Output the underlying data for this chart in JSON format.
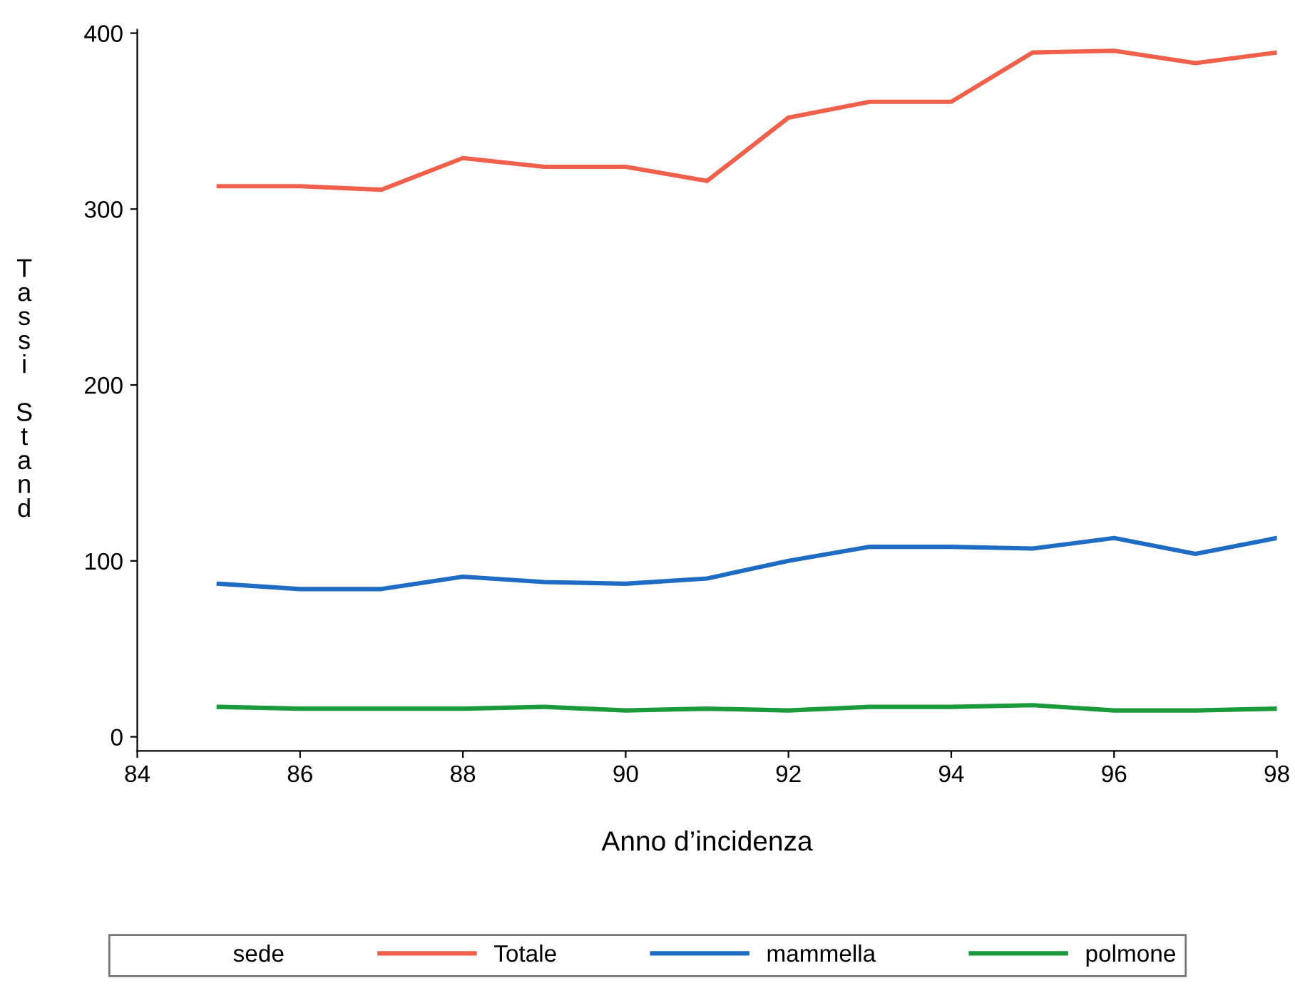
{
  "chart_data": {
    "type": "line",
    "xlabel": "Anno d’incidenza",
    "ylabel": "Tassi Stand",
    "legend_title": "sede",
    "x": [
      85,
      86,
      87,
      88,
      89,
      90,
      91,
      92,
      93,
      94,
      95,
      96,
      97,
      98
    ],
    "series": [
      {
        "name": "Totale",
        "color": "#f0604a",
        "values": [
          313,
          313,
          311,
          329,
          324,
          324,
          316,
          352,
          361,
          361,
          389,
          390,
          383,
          389
        ]
      },
      {
        "name": "mammella",
        "color": "#1f6cc4",
        "values": [
          87,
          84,
          84,
          91,
          88,
          87,
          90,
          100,
          108,
          108,
          107,
          113,
          104,
          113
        ]
      },
      {
        "name": "polmone",
        "color": "#1a9a3a",
        "values": [
          17,
          16,
          16,
          16,
          17,
          15,
          16,
          15,
          17,
          17,
          18,
          15,
          15,
          16
        ]
      }
    ],
    "xlim": [
      84,
      98
    ],
    "xticks": [
      84,
      86,
      88,
      90,
      92,
      94,
      96,
      98
    ],
    "ylim": [
      -8,
      402
    ],
    "yticks": [
      0,
      100,
      200,
      300,
      400
    ],
    "grid": false,
    "legend": "bottom",
    "marker": "none",
    "line_style": "solid"
  }
}
